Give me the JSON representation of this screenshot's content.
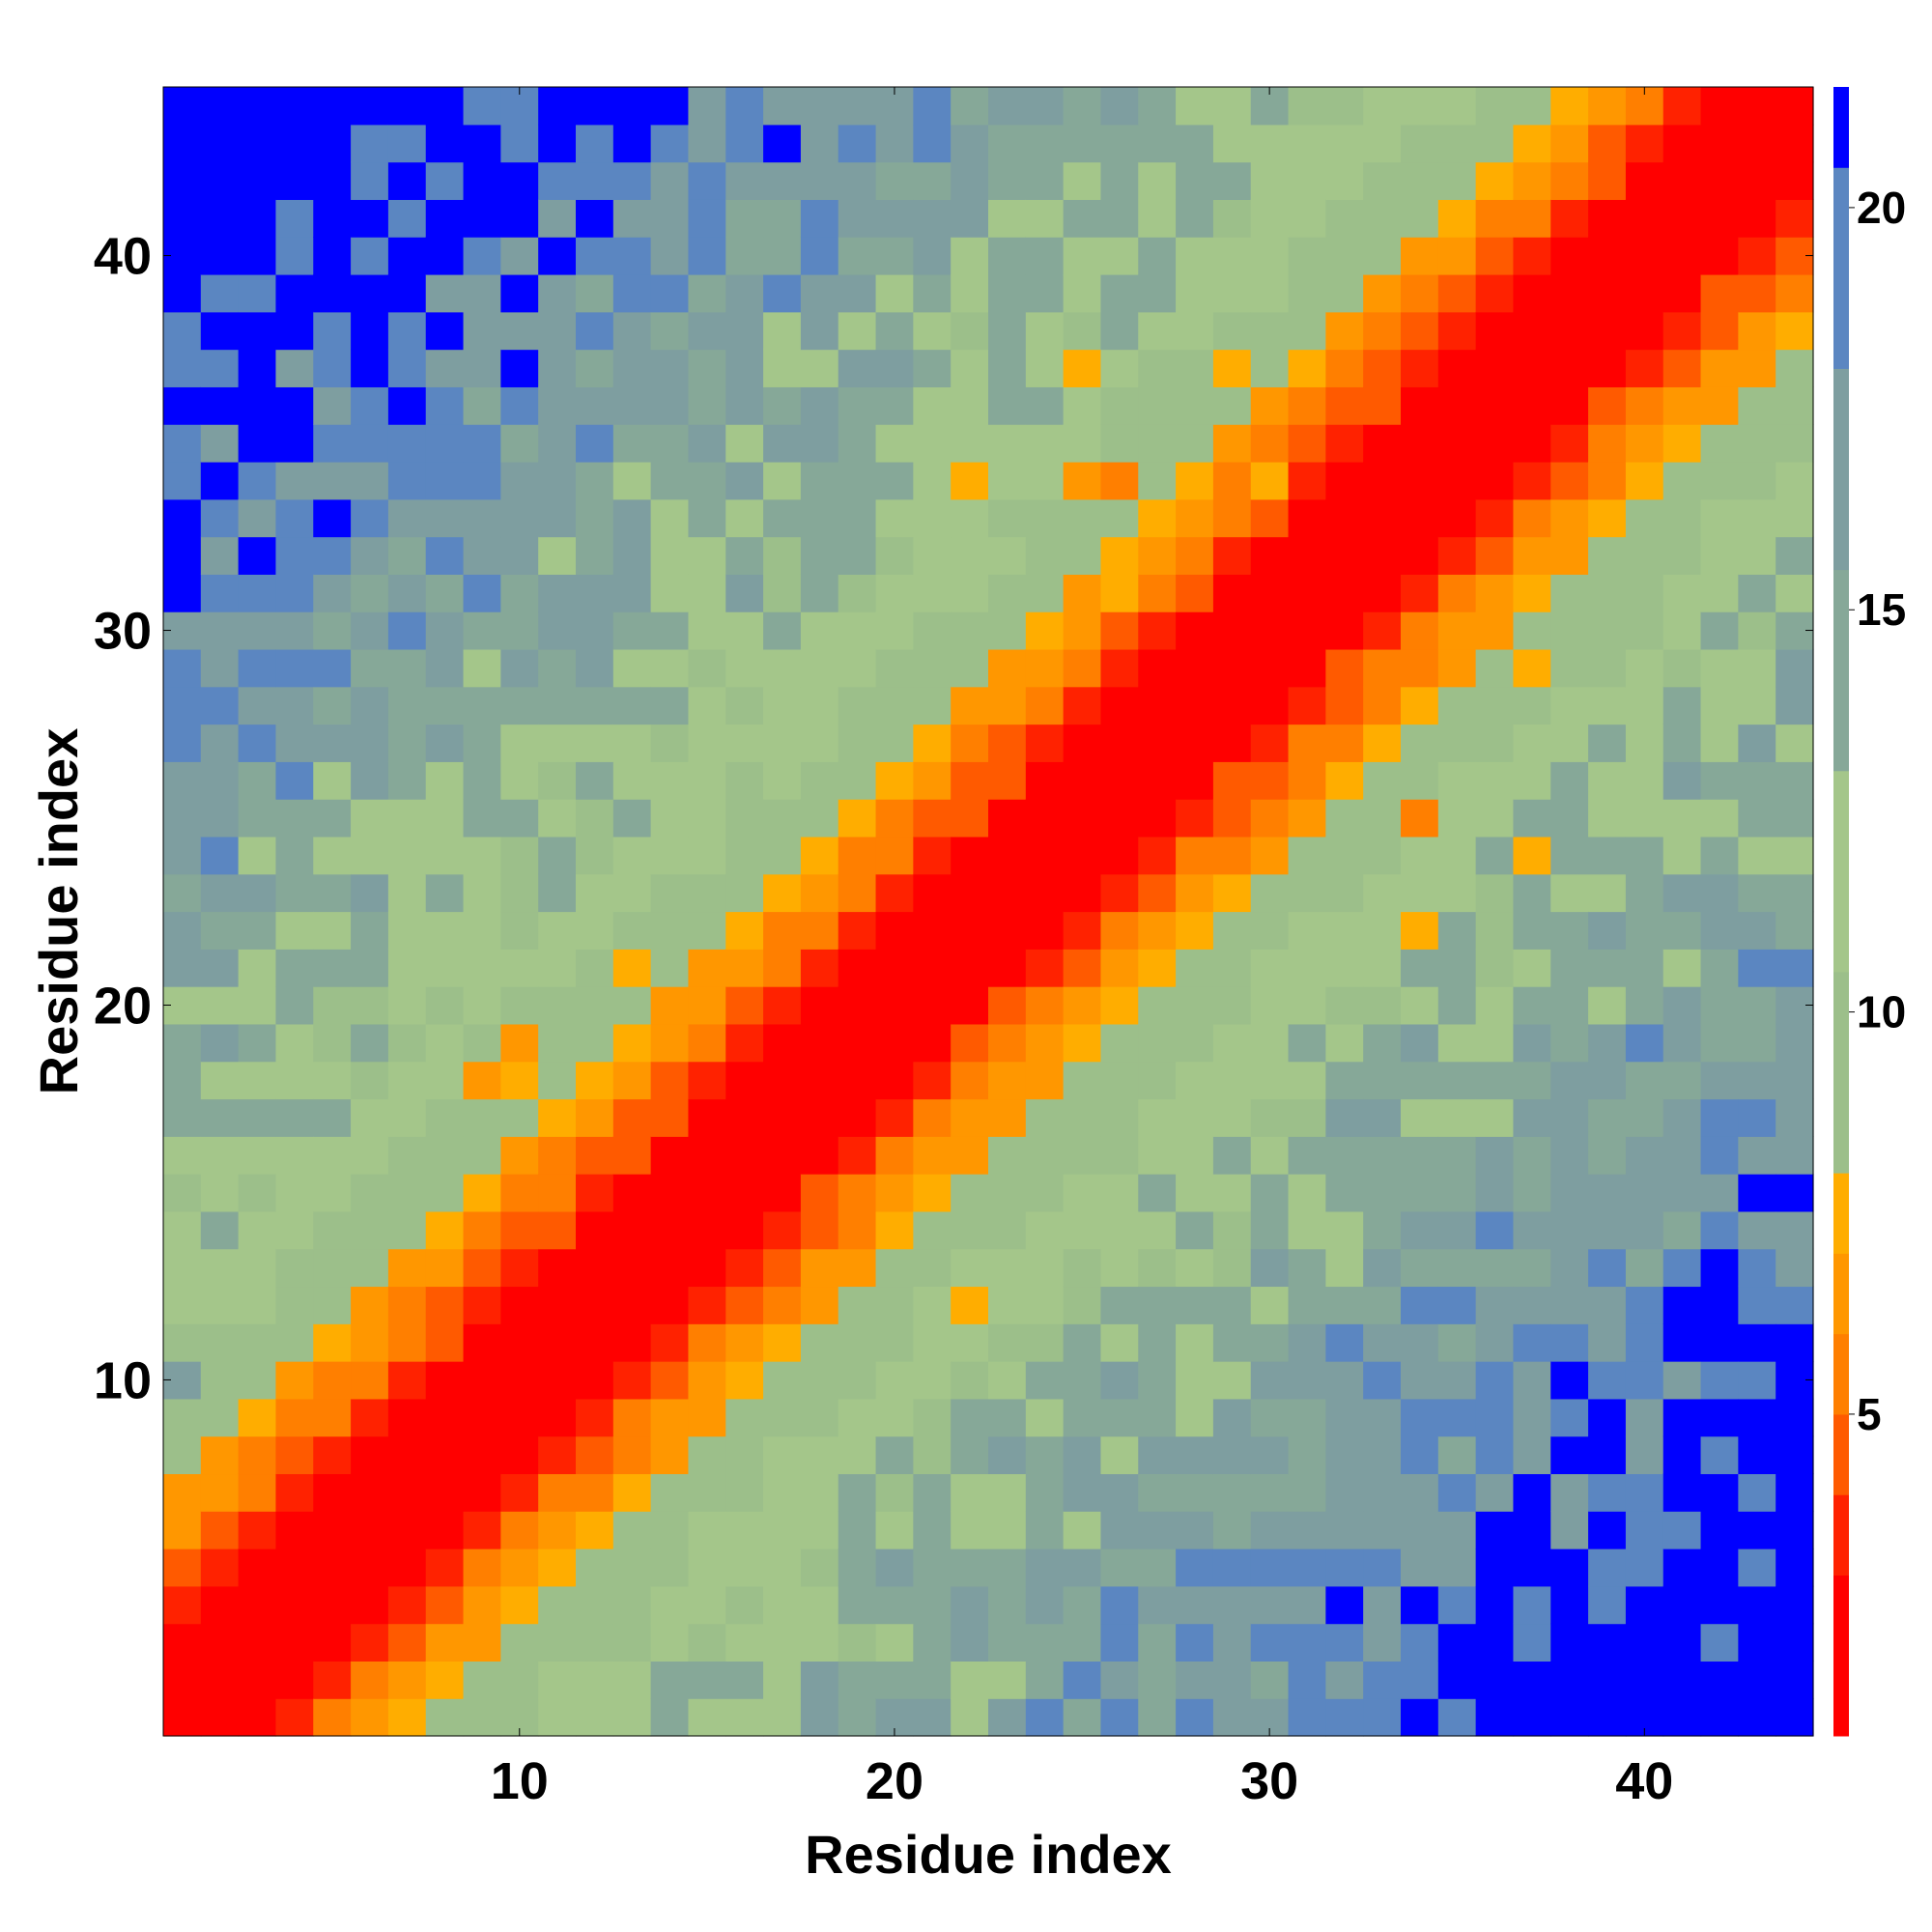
{
  "chart_data": {
    "type": "heatmap",
    "title": "",
    "xlabel": "Residue index",
    "ylabel": "Residue index",
    "xlim": [
      0.5,
      44.5
    ],
    "ylim": [
      0.5,
      44.5
    ],
    "n_residues": 44,
    "x_ticks": [
      10,
      20,
      30,
      40
    ],
    "y_ticks": [
      10,
      20,
      30,
      40
    ],
    "colorbar": {
      "ticks": [
        5,
        10,
        15,
        20
      ],
      "range": [
        1,
        21.5
      ],
      "bands": [
        {
          "from": 1.0,
          "to": 3.0,
          "color": "#ff0000"
        },
        {
          "from": 3.0,
          "to": 4.0,
          "color": "#ff2200"
        },
        {
          "from": 4.0,
          "to": 5.0,
          "color": "#ff5a00"
        },
        {
          "from": 5.0,
          "to": 6.0,
          "color": "#ff7f00"
        },
        {
          "from": 6.0,
          "to": 7.0,
          "color": "#ff9700"
        },
        {
          "from": 7.0,
          "to": 8.0,
          "color": "#ffad00"
        },
        {
          "from": 8.0,
          "to": 10.5,
          "color": "#9cbf8a"
        },
        {
          "from": 10.5,
          "to": 13.0,
          "color": "#a4c68a"
        },
        {
          "from": 13.0,
          "to": 15.5,
          "color": "#86a898"
        },
        {
          "from": 15.5,
          "to": 18.0,
          "color": "#7e9ea0"
        },
        {
          "from": 18.0,
          "to": 20.5,
          "color": "#5b86c1"
        },
        {
          "from": 20.5,
          "to": 21.5,
          "color": "#0000ff"
        }
      ]
    },
    "model": {
      "description_values": "distance per residue pair (i, j), values in colorbar units",
      "near_diagonal": [
        1.5,
        1.5,
        1.5,
        3.6,
        5.0,
        6.2,
        7.1,
        8.6,
        9.5,
        10.2,
        10.8,
        11.3
      ],
      "far_growth_per_residue": 0.42,
      "far_base": 6.6,
      "cap": 21.5
    },
    "overrides": [
      {
        "i": 2,
        "j": 29,
        "v": 15.6
      },
      {
        "i": 6,
        "j": 34,
        "v": 15.6
      },
      {
        "i": 10,
        "j": 34,
        "v": 15.6
      },
      {
        "i": 13,
        "j": 38,
        "v": 15.6
      },
      {
        "i": 15,
        "j": 38,
        "v": 15.6
      },
      {
        "i": 18,
        "j": 43,
        "v": 16.0
      },
      {
        "i": 19,
        "j": 41,
        "v": 16.0
      },
      {
        "i": 1,
        "j": 10,
        "v": 16.5
      },
      {
        "i": 34,
        "j": 10,
        "v": 16.0
      },
      {
        "i": 34,
        "j": 5,
        "v": 16.0
      },
      {
        "i": 38,
        "j": 15,
        "v": 16.0
      },
      {
        "i": 38,
        "j": 13,
        "v": 16.0
      },
      {
        "i": 29,
        "j": 2,
        "v": 16.0
      },
      {
        "i": 43,
        "j": 18,
        "v": 16.0
      },
      {
        "i": 13,
        "j": 21,
        "v": 7.5
      },
      {
        "i": 10,
        "j": 19,
        "v": 6.5
      },
      {
        "i": 10,
        "j": 18,
        "v": 7.5
      },
      {
        "i": 22,
        "j": 34,
        "v": 7.5
      },
      {
        "i": 25,
        "j": 34,
        "v": 6.5
      },
      {
        "i": 26,
        "j": 34,
        "v": 5.5
      },
      {
        "i": 29,
        "j": 34,
        "v": 5.5
      },
      {
        "i": 30,
        "j": 34,
        "v": 7.0
      },
      {
        "i": 25,
        "j": 37,
        "v": 7.5
      },
      {
        "i": 29,
        "j": 37,
        "v": 7.5
      },
      {
        "i": 26,
        "j": 31,
        "v": 7.5
      },
      {
        "i": 22,
        "j": 12,
        "v": 7.5
      },
      {
        "i": 31,
        "j": 25,
        "v": 6.5
      },
      {
        "i": 34,
        "j": 25,
        "v": 5.5
      },
      {
        "i": 37,
        "j": 24,
        "v": 7.5
      },
      {
        "i": 34,
        "j": 22,
        "v": 7.5
      },
      {
        "i": 37,
        "j": 29,
        "v": 7.5
      },
      {
        "i": 33,
        "j": 29,
        "v": 5.0
      },
      {
        "i": 34,
        "j": 29,
        "v": 5.5
      },
      {
        "i": 9,
        "j": 18,
        "v": 6.5
      }
    ]
  }
}
